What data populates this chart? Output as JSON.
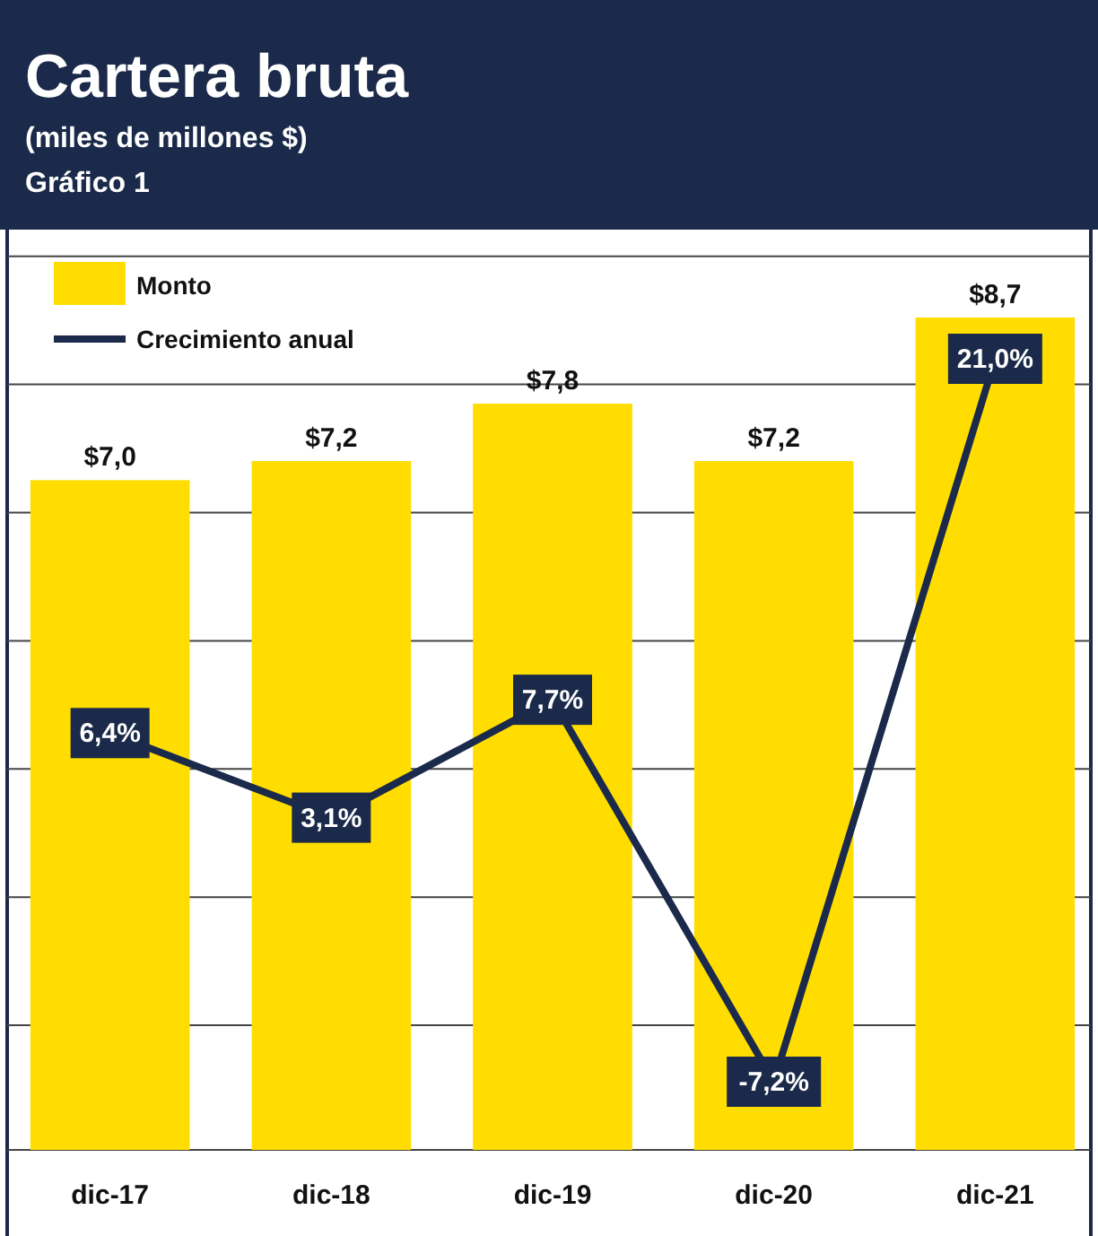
{
  "chart_data": {
    "type": "bar",
    "title": "Cartera bruta",
    "subtitle": "(miles de millones $)",
    "annotations": [
      "Gráfico 1"
    ],
    "categories": [
      "dic-17",
      "dic-18",
      "dic-19",
      "dic-20",
      "dic-21"
    ],
    "series": [
      {
        "name": "Monto",
        "color": "#ffdd00",
        "values": [
          7.0,
          7.2,
          7.8,
          7.2,
          8.7
        ],
        "value_labels": [
          "$7,0",
          "$7,2",
          "$7,8",
          "$7,2",
          "$8,7"
        ]
      },
      {
        "name": "Crecimiento anual",
        "type": "line",
        "axis": "y2",
        "color": "#1b2a4a",
        "values": [
          6.4,
          3.1,
          7.7,
          -7.2,
          21.0
        ],
        "value_labels": [
          "6,4%",
          "3,1%",
          "7,7%",
          "-7,2%",
          "21,0%"
        ]
      }
    ],
    "y2ticks": [
      {
        "value": -5,
        "label": null
      },
      {
        "value": 0,
        "label": null
      },
      {
        "value": 5,
        "label": null
      },
      {
        "value": 10,
        "label": null
      },
      {
        "value": 15,
        "label": null
      },
      {
        "value": 20,
        "label": null
      },
      {
        "value": 25,
        "label": null
      }
    ],
    "tick_labels": "x",
    "grid": true,
    "legend": "top left",
    "marker": "square",
    "line_style": "solid"
  }
}
